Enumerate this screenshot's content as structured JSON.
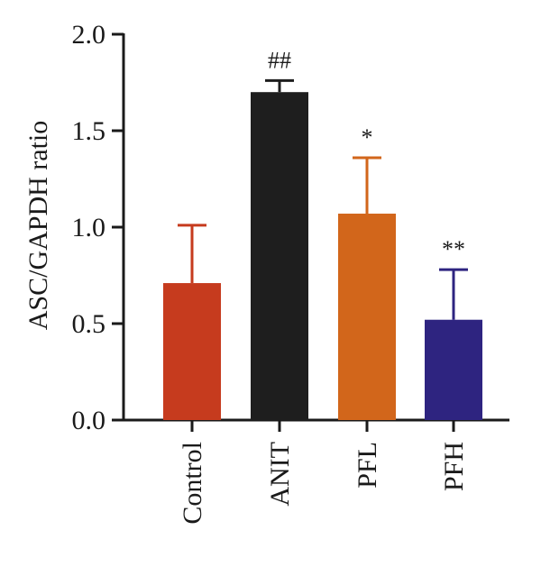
{
  "chart_data": {
    "type": "bar",
    "categories": [
      "Control",
      "ANIT",
      "PFL",
      "PFH"
    ],
    "values": [
      0.71,
      1.7,
      1.07,
      0.52
    ],
    "error_upper": [
      1.01,
      1.76,
      1.36,
      0.78
    ],
    "annotations": [
      "",
      "##",
      "*",
      "**"
    ],
    "colors": [
      "#c63b1e",
      "#1e1e1e",
      "#d2661b",
      "#2e2480"
    ],
    "ylabel": "ASC/GAPDH ratio",
    "xlabel": "",
    "ylim": [
      0,
      2.0
    ],
    "yticks": [
      "0.0",
      "0.5",
      "1.0",
      "1.5",
      "2.0"
    ],
    "grid": false
  }
}
